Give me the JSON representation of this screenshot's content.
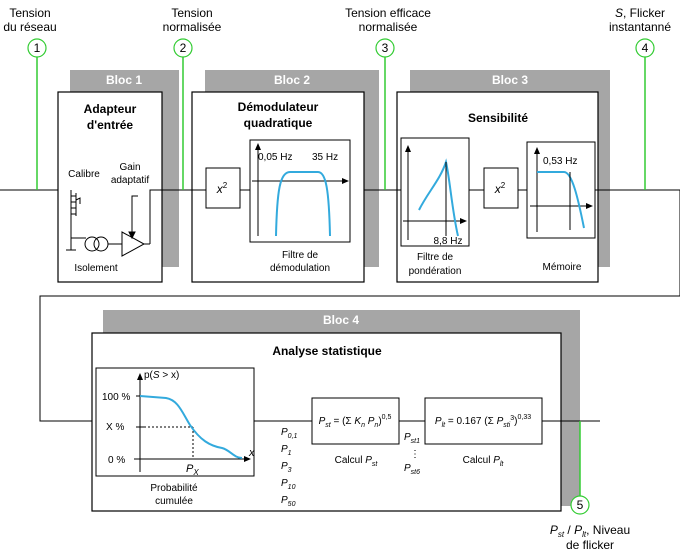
{
  "colors": {
    "shadow": "#a6a6a6",
    "signal_green": "#33cc33",
    "curve_blue": "#33aadd",
    "line": "#000000"
  },
  "points": [
    {
      "number": "1",
      "line1": "Tension",
      "line2": "du réseau"
    },
    {
      "number": "2",
      "line1": "Tension",
      "line2": "normalisée"
    },
    {
      "number": "3",
      "line1": "Tension efficace",
      "line2": "normalisée"
    },
    {
      "number": "4",
      "line1_italic": "S",
      "line1_rest": ", Flicker",
      "line2": "instantanné"
    },
    {
      "number": "5",
      "p_st": "P",
      "p_st_sub": "st",
      "sep": " / ",
      "p_lt": "P",
      "p_lt_sub": "lt",
      "rest": ", Niveau",
      "line2": "de flicker"
    }
  ],
  "bloc1": {
    "tag": "Bloc 1",
    "title1": "Adapteur",
    "title2": "d'entrée",
    "calibre": "Calibre",
    "gain1": "Gain",
    "gain2": "adaptatif",
    "isolement": "Isolement"
  },
  "bloc2": {
    "tag": "Bloc 2",
    "title1": "Démodulateur",
    "title2": "quadratique",
    "x_sq": "x",
    "sq": "2",
    "freq_low": "0,05 Hz",
    "freq_high": "35 Hz",
    "filter1": "Filtre de",
    "filter2": "démodulation"
  },
  "bloc3": {
    "tag": "Bloc 3",
    "title": "Sensibilité",
    "freq": "8,8 Hz",
    "filter1": "Filtre de",
    "filter2": "pondération",
    "x_sq": "x",
    "sq": "2",
    "mem_freq": "0,53 Hz",
    "memoire": "Mémoire"
  },
  "bloc4": {
    "tag": "Bloc 4",
    "title": "Analyse statistique",
    "y_label_p": "p(",
    "y_label_s": "S",
    "y_label_rest": " > x)",
    "tick_100": "100 %",
    "tick_x": "X %",
    "tick_0": "0 %",
    "x_axis": "x",
    "px": "P",
    "px_sub": "X",
    "prob1": "Probabilité",
    "prob2": "cumulée",
    "percentiles": [
      {
        "p": "P",
        "sub": "0,1"
      },
      {
        "p": "P",
        "sub": "1"
      },
      {
        "p": "P",
        "sub": "3"
      },
      {
        "p": "P",
        "sub": "10"
      },
      {
        "p": "P",
        "sub": "50"
      }
    ],
    "pst_formula": {
      "p": "P",
      "sub": "st",
      "eq": " = (Σ ",
      "k": "K",
      "ksub": "n",
      "sp": " ",
      "pn": "P",
      "pnsub": "n",
      "close": ")",
      "exp": "0,5"
    },
    "calc_pst": {
      "label": "Calcul ",
      "p": "P",
      "sub": "st"
    },
    "pst1": {
      "p": "P",
      "sub": "st1"
    },
    "dots": "⋮",
    "pst6": {
      "p": "P",
      "sub": "st6"
    },
    "plt_formula": {
      "p": "P",
      "sub": "lt",
      "eq": " = 0.167 (Σ ",
      "pi": "P",
      "pisub": "sti",
      "exp3": "3",
      "close": ")",
      "exp": "0,33"
    },
    "calc_plt": {
      "label": "Calcul ",
      "p": "P",
      "sub": "lt"
    }
  }
}
